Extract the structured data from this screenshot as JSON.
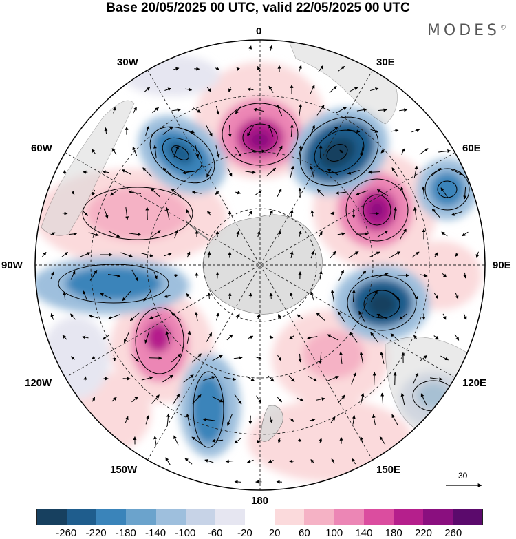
{
  "title": "Base 20/05/2025 00 UTC, valid 22/05/2025 00 UTC",
  "brand": "MODES",
  "brand_mark": "©",
  "lon_labels": {
    "l0": "0",
    "l30e": "30E",
    "l60e": "60E",
    "l90e": "90E",
    "l120e": "120E",
    "l150e": "150E",
    "l180": "180",
    "l150w": "150W",
    "l120w": "120W",
    "l90w": "90W",
    "l60w": "60W",
    "l30w": "30W"
  },
  "vector_reference": "30",
  "colorbar": {
    "colors": [
      "#17405f",
      "#1f5d8d",
      "#3a84ba",
      "#6ba3cc",
      "#9ebfdd",
      "#c7d3e7",
      "#e6e6f1",
      "#ffffff",
      "#fbdadc",
      "#f5b2c5",
      "#ec86b5",
      "#db4d9f",
      "#b51f8c",
      "#8a0f7f",
      "#5b0a6c"
    ],
    "ticks": [
      "-260",
      "-220",
      "-180",
      "-140",
      "-100",
      "-60",
      "-20",
      "20",
      "60",
      "100",
      "140",
      "180",
      "220",
      "260"
    ]
  },
  "colors": {
    "land": "#d9d9d9",
    "ocean": "#ffffff"
  }
}
